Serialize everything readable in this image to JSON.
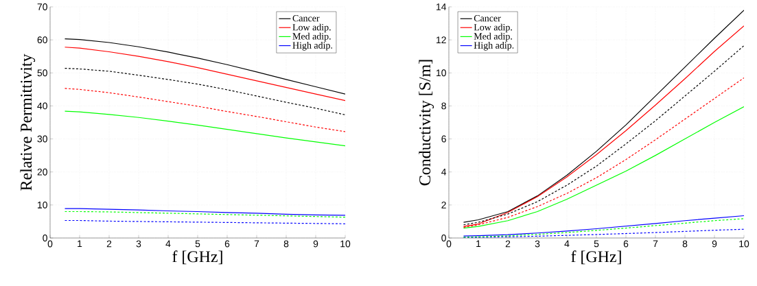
{
  "chart_data": [
    {
      "type": "line",
      "xlabel": "f [GHz]",
      "ylabel": "Relative Permittivity",
      "x": [
        0.5,
        1,
        2,
        3,
        4,
        5,
        6,
        7,
        8,
        9,
        10
      ],
      "xlim": [
        0,
        10
      ],
      "ylim": [
        0,
        70
      ],
      "xticks": [
        0,
        1,
        2,
        3,
        4,
        5,
        6,
        7,
        8,
        9,
        10
      ],
      "yticks": [
        0,
        10,
        20,
        30,
        40,
        50,
        60,
        70
      ],
      "grid": true,
      "legend": "top right",
      "series": [
        {
          "name": "Cancer",
          "color": "#000000",
          "line_style": "solid",
          "values": [
            60.3,
            60.1,
            59.2,
            57.9,
            56.3,
            54.5,
            52.5,
            50.3,
            48,
            45.8,
            43.6
          ]
        },
        {
          "name": "Low adip.",
          "color": "#ff0000",
          "line_style": "solid",
          "values": [
            57.8,
            57.5,
            56.4,
            55,
            53.4,
            51.6,
            49.6,
            47.6,
            45.6,
            43.6,
            41.6
          ]
        },
        {
          "name": "Med adip.",
          "color": "#00ff00",
          "line_style": "solid",
          "values": [
            38.4,
            38.2,
            37.4,
            36.5,
            35.4,
            34.2,
            32.9,
            31.6,
            30.3,
            29.1,
            27.9
          ]
        },
        {
          "name": "High adip.",
          "color": "#0000ff",
          "line_style": "solid",
          "values": [
            8.9,
            8.9,
            8.7,
            8.5,
            8.2,
            8.0,
            7.7,
            7.5,
            7.2,
            7.0,
            6.9
          ]
        },
        {
          "color": "#000000",
          "line_style": "dashed",
          "values": [
            51.4,
            51.2,
            50.5,
            49.3,
            48,
            46.6,
            44.9,
            43,
            41.1,
            39.3,
            37.3
          ]
        },
        {
          "color": "#ff0000",
          "line_style": "dashed",
          "values": [
            45.3,
            45,
            44,
            42.7,
            41.3,
            39.9,
            38.3,
            36.8,
            35.2,
            33.6,
            32.2
          ]
        },
        {
          "color": "#00ff00",
          "line_style": "dashed",
          "values": [
            8.0,
            8.0,
            7.9,
            7.7,
            7.5,
            7.3,
            7.1,
            6.9,
            6.7,
            6.5,
            6.3
          ]
        },
        {
          "color": "#0000ff",
          "line_style": "dashed",
          "values": [
            5.3,
            5.3,
            5.1,
            5.0,
            4.9,
            4.8,
            4.7,
            4.6,
            4.5,
            4.4,
            4.3
          ]
        }
      ]
    },
    {
      "type": "line",
      "xlabel": "f [GHz]",
      "ylabel": "Conductivity [S/m]",
      "x": [
        0.5,
        1,
        2,
        3,
        4,
        5,
        6,
        7,
        8,
        9,
        10
      ],
      "xlim": [
        0,
        10
      ],
      "ylim": [
        0,
        14
      ],
      "xticks": [
        0,
        1,
        2,
        3,
        4,
        5,
        6,
        7,
        8,
        9,
        10
      ],
      "yticks": [
        0,
        2,
        4,
        6,
        8,
        10,
        12,
        14
      ],
      "grid": true,
      "legend": "top left",
      "series": [
        {
          "name": "Cancer",
          "color": "#000000",
          "line_style": "solid",
          "values": [
            0.95,
            1.1,
            1.6,
            2.55,
            3.8,
            5.25,
            6.85,
            8.6,
            10.35,
            12.1,
            13.8
          ]
        },
        {
          "name": "Low adip.",
          "color": "#ff0000",
          "line_style": "solid",
          "values": [
            0.7,
            0.85,
            1.55,
            2.5,
            3.7,
            5.05,
            6.5,
            8.05,
            9.65,
            11.3,
            12.85
          ]
        },
        {
          "name": "Med adip.",
          "color": "#00ff00",
          "line_style": "solid",
          "values": [
            0.6,
            0.7,
            1.05,
            1.6,
            2.35,
            3.2,
            4.05,
            5.0,
            6.0,
            7.0,
            7.95
          ]
        },
        {
          "name": "High adip.",
          "color": "#0000ff",
          "line_style": "solid",
          "values": [
            0.12,
            0.14,
            0.2,
            0.3,
            0.42,
            0.56,
            0.72,
            0.88,
            1.05,
            1.2,
            1.35
          ]
        },
        {
          "color": "#000000",
          "line_style": "dashed",
          "values": [
            0.8,
            0.95,
            1.45,
            2.2,
            3.2,
            4.35,
            5.7,
            7.1,
            8.6,
            10.1,
            11.65
          ]
        },
        {
          "color": "#ff0000",
          "line_style": "dashed",
          "values": [
            0.65,
            0.8,
            1.25,
            1.9,
            2.7,
            3.65,
            4.75,
            5.95,
            7.2,
            8.45,
            9.7
          ]
        },
        {
          "color": "#00ff00",
          "line_style": "dashed",
          "values": [
            0.05,
            0.07,
            0.13,
            0.22,
            0.33,
            0.46,
            0.6,
            0.75,
            0.9,
            1.05,
            1.17
          ]
        },
        {
          "color": "#0000ff",
          "line_style": "dashed",
          "values": [
            0.03,
            0.04,
            0.07,
            0.11,
            0.16,
            0.21,
            0.27,
            0.33,
            0.4,
            0.47,
            0.53
          ]
        }
      ]
    }
  ]
}
